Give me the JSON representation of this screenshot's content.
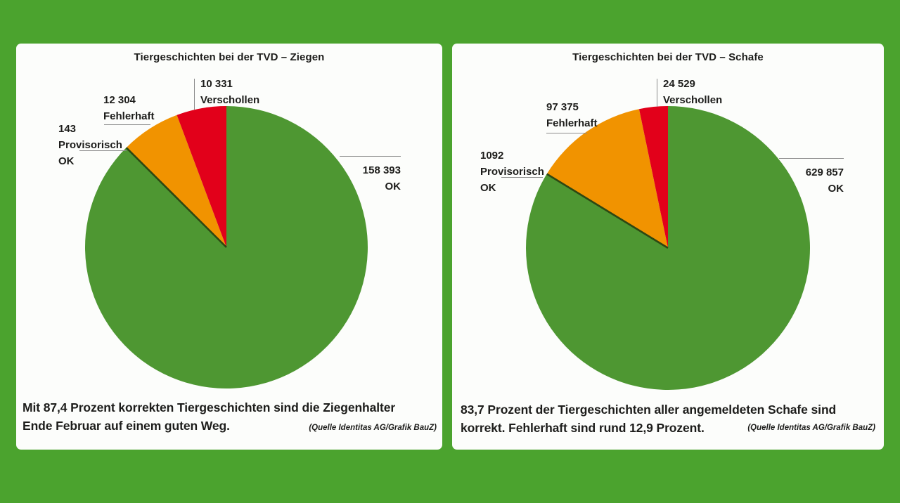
{
  "background_color": "#4BA32E",
  "panel_color": "#FCFDFB",
  "text_color": "#1D1D1B",
  "leader_line_color": "#8C8C8C",
  "chart_data": [
    {
      "type": "pie",
      "title": "Tiergeschichten bei der TVD – Ziegen",
      "start_angle_deg": 0,
      "direction": "clockwise",
      "legend_position": "outside-callouts",
      "slices": [
        {
          "name": "OK",
          "value": 158393,
          "display_value": "158 393",
          "label_lines": [
            "OK"
          ],
          "color": "#4E9732"
        },
        {
          "name": "Provisorisch OK",
          "value": 143,
          "display_value": "143",
          "label_lines": [
            "Provisorisch",
            "OK"
          ],
          "color": "#2E4712"
        },
        {
          "name": "Fehlerhaft",
          "value": 12304,
          "display_value": "12 304",
          "label_lines": [
            "Fehlerhaft"
          ],
          "color": "#F19300"
        },
        {
          "name": "Verschollen",
          "value": 10331,
          "display_value": "10 331",
          "label_lines": [
            "Verschollen"
          ],
          "color": "#E2001A"
        }
      ],
      "caption_line1": "Mit 87,4 Prozent korrekten Tiergeschichten sind die Ziegenhalter",
      "caption_line2": "Ende Februar auf einem guten Weg.",
      "source": "(Quelle Identitas AG/Grafik BauZ)"
    },
    {
      "type": "pie",
      "title": "Tiergeschichten bei der TVD – Schafe",
      "start_angle_deg": 0,
      "direction": "clockwise",
      "legend_position": "outside-callouts",
      "slices": [
        {
          "name": "OK",
          "value": 629857,
          "display_value": "629 857",
          "label_lines": [
            "OK"
          ],
          "color": "#4E9732"
        },
        {
          "name": "Provisorisch OK",
          "value": 1092,
          "display_value": "1092",
          "label_lines": [
            "Provisorisch",
            "OK"
          ],
          "color": "#2E4712"
        },
        {
          "name": "Fehlerhaft",
          "value": 97375,
          "display_value": "97 375",
          "label_lines": [
            "Fehlerhaft"
          ],
          "color": "#F19300"
        },
        {
          "name": "Verschollen",
          "value": 24529,
          "display_value": "24 529",
          "label_lines": [
            "Verschollen"
          ],
          "color": "#E2001A"
        }
      ],
      "caption_line1": "83,7 Prozent der Tiergeschichten aller angemeldeten Schafe sind",
      "caption_line2": "korrekt. Fehlerhaft sind rund 12,9 Prozent.",
      "source": "(Quelle Identitas AG/Grafik BauZ)"
    }
  ]
}
